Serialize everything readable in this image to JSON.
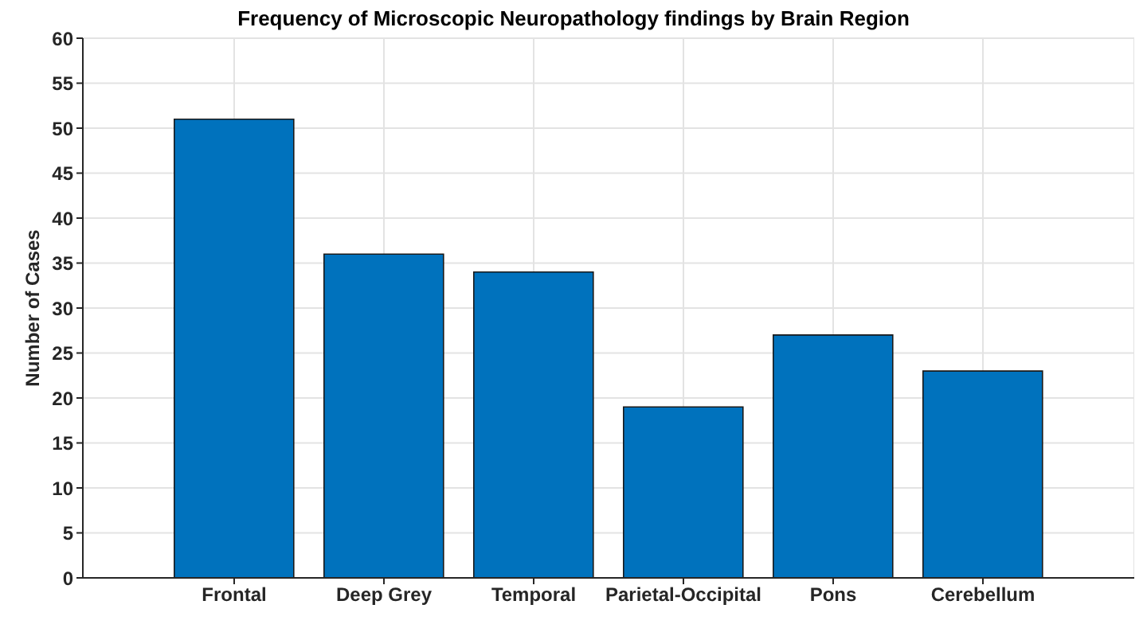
{
  "chart_data": {
    "type": "bar",
    "title": "Frequency of Microscopic Neuropathology findings by Brain Region",
    "ylabel": "Number of Cases",
    "categories": [
      "Frontal",
      "Deep Grey",
      "Temporal",
      "Parietal-Occipital",
      "Pons",
      "Cerebellum"
    ],
    "values": [
      51,
      36,
      34,
      19,
      27,
      23
    ],
    "color": "#0072bd",
    "ylim": [
      0,
      60
    ],
    "yticks": [
      0,
      5,
      10,
      15,
      20,
      25,
      30,
      35,
      40,
      45,
      50,
      55,
      60
    ],
    "grid": true
  }
}
